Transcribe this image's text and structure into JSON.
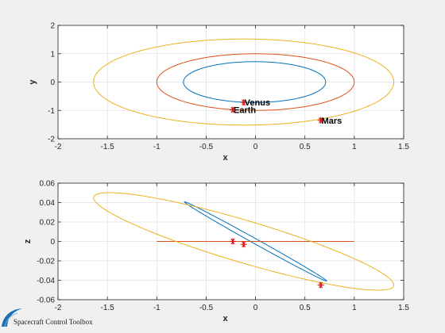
{
  "chart_data": [
    {
      "type": "line",
      "name": "top-plot",
      "xlabel": "x",
      "ylabel": "y",
      "xlim": [
        -2,
        1.5
      ],
      "ylim": [
        -2,
        2
      ],
      "xticks": [
        -2,
        -1.5,
        -1,
        -0.5,
        0,
        0.5,
        1,
        1.5
      ],
      "yticks": [
        -2,
        -1,
        0,
        1,
        2
      ],
      "xtick_labels": [
        "-2",
        "-1.5",
        "-1",
        "-0.5",
        "0",
        "0.5",
        "1",
        "1.5"
      ],
      "ytick_labels": [
        "-2",
        "-1",
        "0",
        "1",
        "2"
      ],
      "grid": true,
      "series": [
        {
          "color": "#0072BD",
          "orbit": {
            "cx": -0.01,
            "cy": 0.0,
            "rx": 0.72,
            "ry": 0.72,
            "rot": 0
          }
        },
        {
          "color": "#D95319",
          "orbit": {
            "cx": 0.0,
            "cy": 0.0,
            "rx": 1.0,
            "ry": 1.0,
            "rot": 0
          }
        },
        {
          "color": "#EDB120",
          "orbit": {
            "cx": -0.12,
            "cy": 0.0,
            "rx": 1.52,
            "ry": 1.52,
            "rot": 0
          }
        }
      ],
      "points": [
        {
          "label": "Venus",
          "x": -0.12,
          "y": -0.72
        },
        {
          "label": "Earth",
          "x": -0.23,
          "y": -0.98
        },
        {
          "label": "Mars",
          "x": 0.66,
          "y": -1.35
        }
      ]
    },
    {
      "type": "line",
      "name": "bottom-plot",
      "xlabel": "x",
      "ylabel": "z",
      "xlim": [
        -2,
        1.5
      ],
      "ylim": [
        -0.06,
        0.06
      ],
      "xticks": [
        -2,
        -1.5,
        -1,
        -0.5,
        0,
        0.5,
        1,
        1.5
      ],
      "yticks": [
        -0.06,
        -0.04,
        -0.02,
        0,
        0.02,
        0.04,
        0.06
      ],
      "xtick_labels": [
        "-2",
        "-1.5",
        "-1",
        "-0.5",
        "0",
        "0.5",
        "1",
        "1.5"
      ],
      "ytick_labels": [
        "-0.06",
        "-0.04",
        "-0.02",
        "0",
        "0.02",
        "0.04",
        "0.06"
      ],
      "grid": true,
      "series": [
        {
          "color": "#0072BD",
          "orbit": {
            "cx": 0.0,
            "cy": 0.0,
            "rx": 0.72,
            "ry": 0.0029,
            "rot": 3.39
          }
        },
        {
          "color": "#D95319",
          "orbit": {
            "cx": 0.0,
            "cy": 0.0,
            "rx": 1.0,
            "ry": 0.0,
            "rot": 0
          }
        },
        {
          "color": "#EDB120",
          "orbit": {
            "cx": -0.12,
            "cy": 0.0,
            "rx": 1.52,
            "ry": 0.0226,
            "rot": 1.85
          }
        }
      ],
      "points": [
        {
          "label": "",
          "x": -0.12,
          "y": -0.003
        },
        {
          "label": "",
          "x": -0.23,
          "y": 0.0
        },
        {
          "label": "",
          "x": 0.66,
          "y": -0.045
        }
      ]
    }
  ],
  "logo": {
    "text": "Spacecraft Control Toolbox"
  }
}
